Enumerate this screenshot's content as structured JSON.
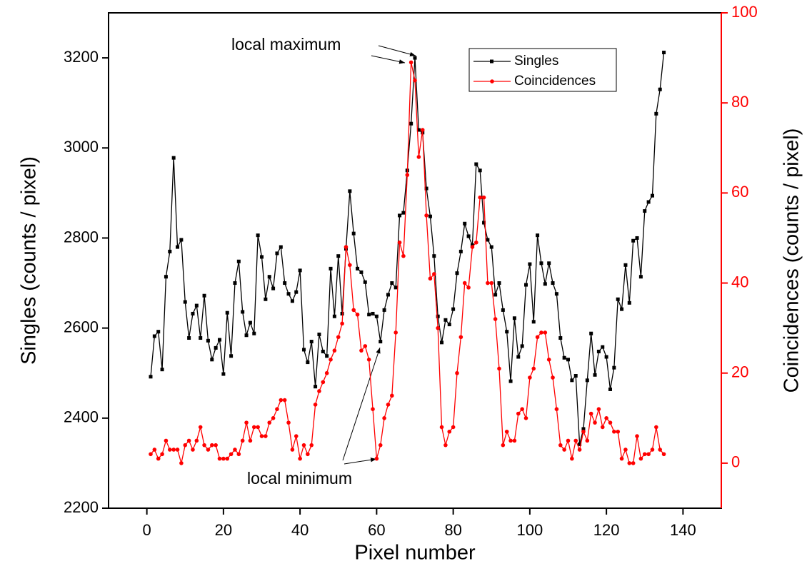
{
  "chart_data": {
    "type": "line",
    "xlabel": "Pixel number",
    "ylabel": "Singles (counts / pixel)",
    "y2label": "Coincidences (counts / pixel)",
    "xlim": [
      -10,
      150
    ],
    "xticks": [
      0,
      20,
      40,
      60,
      80,
      100,
      120,
      140
    ],
    "ylim": [
      2200,
      3300
    ],
    "yticks": [
      2200,
      2400,
      2600,
      2800,
      3000,
      3200
    ],
    "y2lim": [
      -10,
      100
    ],
    "y2ticks": [
      0,
      20,
      40,
      60,
      80,
      100
    ],
    "legend": "upper right",
    "annotations": [
      {
        "text": "local maximum"
      },
      {
        "text": "local minimum"
      }
    ],
    "x": [
      1,
      2,
      3,
      4,
      5,
      6,
      7,
      8,
      9,
      10,
      11,
      12,
      13,
      14,
      15,
      16,
      17,
      18,
      19,
      20,
      21,
      22,
      23,
      24,
      25,
      26,
      27,
      28,
      29,
      30,
      31,
      32,
      33,
      34,
      35,
      36,
      37,
      38,
      39,
      40,
      41,
      42,
      43,
      44,
      45,
      46,
      47,
      48,
      49,
      50,
      51,
      52,
      53,
      54,
      55,
      56,
      57,
      58,
      59,
      60,
      61,
      62,
      63,
      64,
      65,
      66,
      67,
      68,
      69,
      70,
      71,
      72,
      73,
      74,
      75,
      76,
      77,
      78,
      79,
      80,
      81,
      82,
      83,
      84,
      85,
      86,
      87,
      88,
      89,
      90,
      91,
      92,
      93,
      94,
      95,
      96,
      97,
      98,
      99,
      100,
      101,
      102,
      103,
      104,
      105,
      106,
      107,
      108,
      109,
      110,
      111,
      112,
      113,
      114,
      115,
      116,
      117,
      118,
      119,
      120,
      121,
      122,
      123,
      124,
      125,
      126,
      127,
      128,
      129,
      130,
      131,
      132,
      133,
      134,
      135
    ],
    "series": [
      {
        "name": "Singles",
        "color": "#000000",
        "marker": "square",
        "values": [
          2492,
          2582,
          2592,
          2508,
          2714,
          2770,
          2978,
          2780,
          2796,
          2658,
          2578,
          2632,
          2650,
          2578,
          2672,
          2572,
          2530,
          2556,
          2574,
          2498,
          2634,
          2538,
          2700,
          2748,
          2636,
          2584,
          2612,
          2588,
          2806,
          2758,
          2664,
          2714,
          2688,
          2766,
          2780,
          2700,
          2676,
          2660,
          2680,
          2728,
          2552,
          2524,
          2570,
          2470,
          2586,
          2548,
          2538,
          2732,
          2626,
          2760,
          2632,
          2776,
          2904,
          2810,
          2732,
          2724,
          2702,
          2630,
          2632,
          2626,
          2570,
          2640,
          2674,
          2700,
          2690,
          2850,
          2856,
          2950,
          3054,
          3200,
          3040,
          3034,
          2910,
          2848,
          2760,
          2626,
          2568,
          2618,
          2608,
          2642,
          2722,
          2770,
          2832,
          2804,
          2784,
          2964,
          2950,
          2834,
          2796,
          2780,
          2674,
          2700,
          2640,
          2592,
          2482,
          2622,
          2536,
          2560,
          2696,
          2742,
          2614,
          2806,
          2744,
          2698,
          2744,
          2700,
          2676,
          2578,
          2534,
          2530,
          2484,
          2494,
          2342,
          2376,
          2484,
          2588,
          2496,
          2548,
          2558,
          2536,
          2464,
          2512,
          2664,
          2642,
          2740,
          2656,
          2794,
          2800,
          2714,
          2860,
          2880,
          2894,
          3076,
          3130,
          3212
        ]
      },
      {
        "name": "Coincidences",
        "color": "#ff0000",
        "marker": "circle",
        "axis": "y2",
        "values": [
          2,
          3,
          1,
          2,
          5,
          3,
          3,
          3,
          0,
          4,
          5,
          3,
          5,
          8,
          4,
          3,
          4,
          4,
          1,
          1,
          1,
          2,
          3,
          2,
          5,
          9,
          5,
          8,
          8,
          6,
          6,
          9,
          10,
          12,
          14,
          14,
          9,
          3,
          6,
          1,
          4,
          2,
          4,
          13,
          16,
          18,
          20,
          23,
          25,
          28,
          31,
          48,
          44,
          34,
          33,
          25,
          26,
          23,
          12,
          1,
          4,
          10,
          13,
          15,
          29,
          49,
          46,
          64,
          89,
          85,
          68,
          74,
          55,
          41,
          42,
          30,
          8,
          4,
          7,
          8,
          20,
          28,
          40,
          39,
          48,
          49,
          59,
          59,
          40,
          40,
          32,
          21,
          4,
          7,
          5,
          5,
          11,
          12,
          10,
          19,
          21,
          28,
          29,
          29,
          23,
          19,
          12,
          4,
          3,
          5,
          1,
          5,
          3,
          7,
          5,
          11,
          9,
          12,
          8,
          10,
          9,
          7,
          7,
          1,
          3,
          0,
          0,
          6,
          1,
          2,
          2,
          3,
          8,
          3,
          2
        ]
      }
    ]
  }
}
